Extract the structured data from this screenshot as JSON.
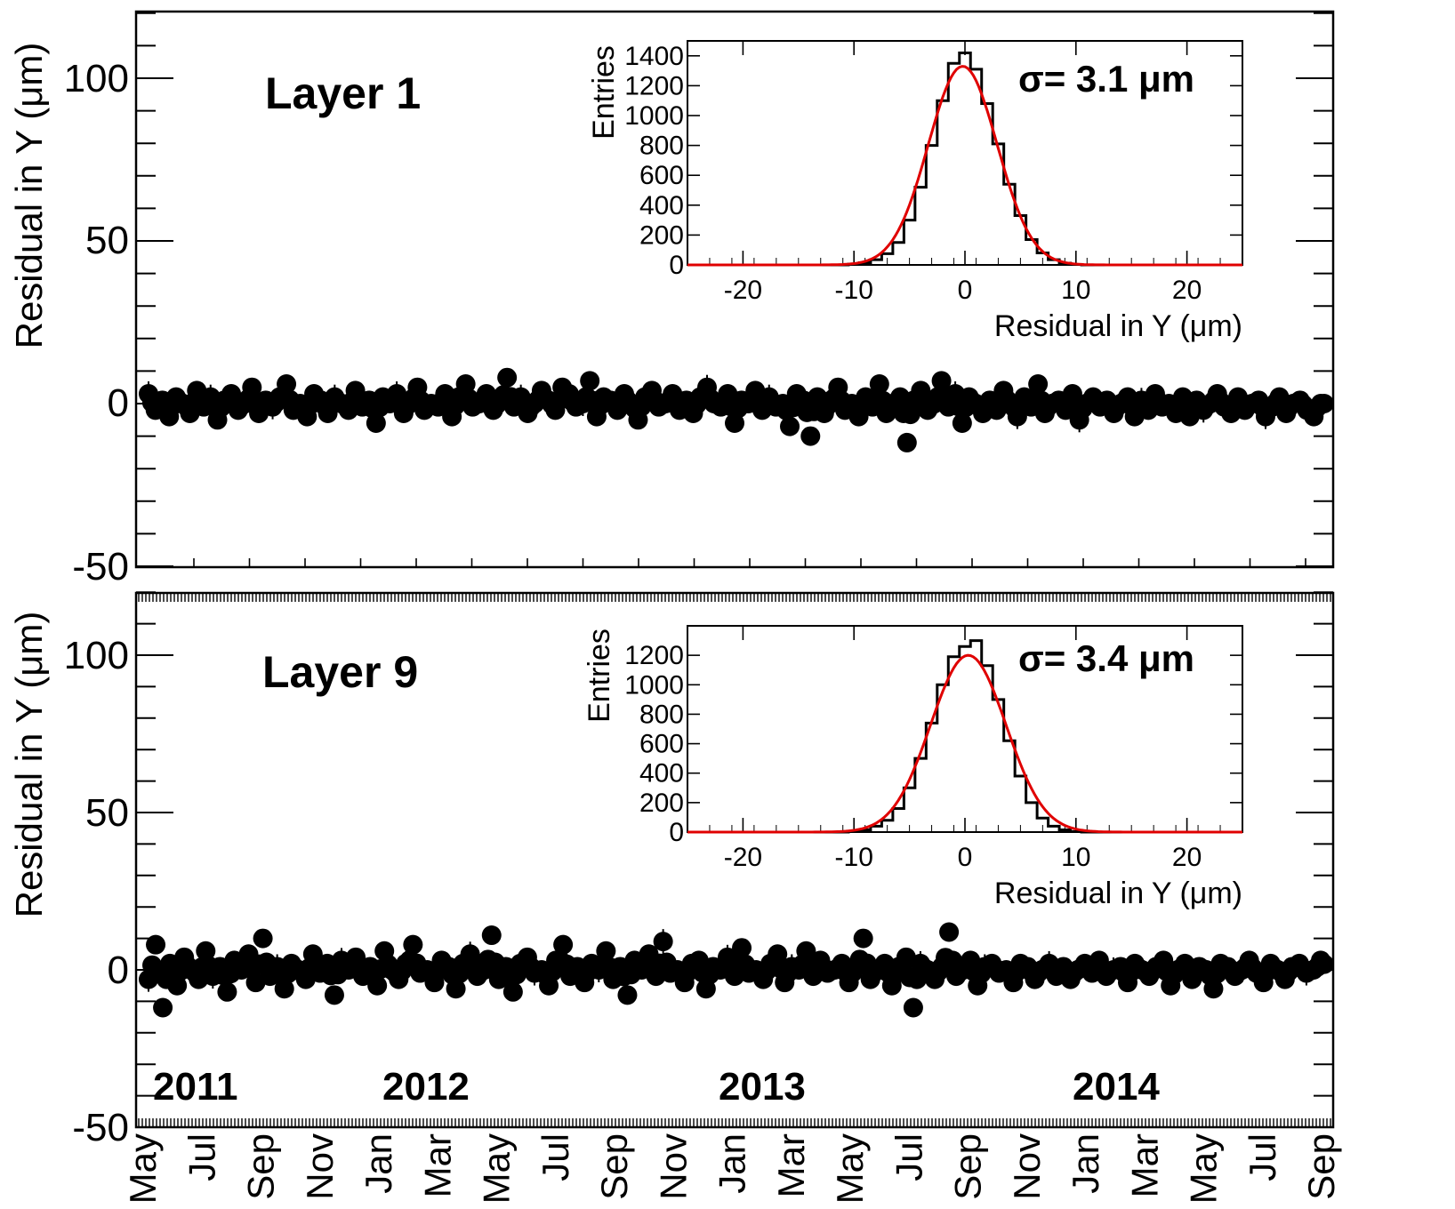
{
  "chart_data": [
    {
      "type": "scatter",
      "panel": "top",
      "title": "Layer 1",
      "ylabel": "Residual in Y (μm)",
      "ylim": [
        -50,
        120
      ],
      "yticks": [
        "100",
        "50",
        "0",
        "-50"
      ],
      "xrange": [
        "2011-05-01",
        "2014-09-30"
      ],
      "series": [
        {
          "type": "scatter",
          "description_values": "daily mean residuals scattered around ~0 um, mostly within -8..+10 um",
          "x_start": "2011-05-01",
          "x_end": "2014-09-30",
          "y": [
            3,
            -2,
            1,
            -4,
            2,
            0,
            -3,
            4,
            -1,
            2,
            -5,
            1,
            3,
            -2,
            0,
            5,
            -3,
            1,
            -1,
            2,
            6,
            -2,
            0,
            -4,
            3,
            1,
            -3,
            2,
            0,
            -2,
            4,
            -1,
            1,
            -6,
            2,
            0,
            3,
            -3,
            1,
            5,
            -2,
            0,
            -1,
            3,
            -4,
            2,
            6,
            -1,
            0,
            3,
            -2,
            1,
            8,
            -1,
            2,
            -3,
            0,
            4,
            1,
            -2,
            5,
            3,
            -1,
            0,
            7,
            -4,
            2,
            1,
            -2,
            3,
            0,
            -5,
            2,
            4,
            -1,
            0,
            3,
            -2,
            1,
            -3,
            2,
            5,
            0,
            -1,
            3,
            -6,
            1,
            0,
            4,
            -2,
            2,
            -1,
            0,
            -7,
            3,
            1,
            -10,
            2,
            -3,
            1,
            5,
            -2,
            0,
            -4,
            2,
            -1,
            6,
            -3,
            0,
            2,
            -12,
            1,
            4,
            -2,
            0,
            7,
            -1,
            3,
            -6,
            2,
            0,
            -3,
            1,
            -2,
            4,
            0,
            -4,
            2,
            -1,
            6,
            -3,
            0,
            1,
            -2,
            3,
            -5,
            0,
            2,
            -1,
            1,
            -3,
            0,
            2,
            -4,
            1,
            -2,
            3,
            -1,
            0,
            -3,
            2,
            -4,
            1,
            -2,
            0,
            3,
            -1,
            -3,
            2,
            -2,
            0,
            1,
            -4,
            -1,
            2,
            -3,
            0,
            1,
            -2,
            -4,
            0
          ]
        }
      ],
      "inset": {
        "type": "bar",
        "xlabel": "Residual in Y (μm)",
        "ylabel": "Entries",
        "xlim": [
          -25,
          25
        ],
        "ylim": [
          0,
          1500
        ],
        "xticks": [
          "-20",
          "-10",
          "0",
          "10",
          "20"
        ],
        "yticks": [
          "0",
          "200",
          "400",
          "600",
          "800",
          "1000",
          "1200",
          "1400"
        ],
        "sigma_label": "σ= 3.1 μm",
        "sigma": 3.1,
        "peak": 1330,
        "mean": -0.2,
        "bins_x": [
          -11,
          -10,
          -9,
          -8,
          -7,
          -6,
          -5,
          -4,
          -3,
          -2,
          -1,
          0,
          1,
          2,
          3,
          4,
          5,
          6,
          7,
          8,
          9,
          10
        ],
        "bins_y": [
          0,
          5,
          15,
          35,
          75,
          150,
          300,
          520,
          800,
          1100,
          1350,
          1420,
          1310,
          1080,
          810,
          540,
          330,
          170,
          80,
          35,
          12,
          3
        ],
        "fit_color": "#e00000"
      }
    },
    {
      "type": "scatter",
      "panel": "bottom",
      "title": "Layer 9",
      "ylabel": "Residual in Y (μm)",
      "ylim": [
        -50,
        120
      ],
      "yticks": [
        "100",
        "50",
        "0",
        "-50"
      ],
      "xrange": [
        "2011-05-01",
        "2014-09-30"
      ],
      "series": [
        {
          "type": "scatter",
          "description_values": "daily mean residuals scattered around ~0 um, mostly within -10..+12 um",
          "x_start": "2011-05-01",
          "x_end": "2014-09-30",
          "y": [
            -3,
            8,
            -12,
            2,
            -5,
            4,
            0,
            -3,
            6,
            -2,
            1,
            -7,
            3,
            0,
            5,
            -4,
            10,
            -2,
            1,
            -6,
            2,
            0,
            -3,
            5,
            -1,
            2,
            -8,
            3,
            0,
            4,
            -2,
            1,
            -5,
            6,
            0,
            -3,
            2,
            8,
            -1,
            0,
            -4,
            3,
            1,
            -6,
            2,
            5,
            -2,
            0,
            11,
            -3,
            1,
            -7,
            2,
            4,
            -1,
            0,
            -5,
            3,
            8,
            -2,
            1,
            -4,
            2,
            0,
            6,
            -3,
            1,
            -8,
            3,
            0,
            5,
            -2,
            9,
            -1,
            0,
            -4,
            2,
            3,
            -6,
            1,
            0,
            4,
            -2,
            7,
            -1,
            0,
            -3,
            2,
            5,
            -4,
            1,
            0,
            6,
            -2,
            3,
            -1,
            0,
            2,
            -4,
            1,
            10,
            -3,
            0,
            2,
            -5,
            1,
            4,
            -12,
            2,
            0,
            -3,
            1,
            12,
            -2,
            0,
            3,
            -5,
            1,
            2,
            -1,
            0,
            -4,
            2,
            1,
            -3,
            0,
            2,
            -2,
            1,
            -3,
            0,
            2,
            -1,
            3,
            -2,
            0,
            1,
            -4,
            2,
            0,
            -2,
            1,
            3,
            -5,
            0,
            2,
            -3,
            1,
            0,
            -6,
            2,
            1,
            -2,
            0,
            3,
            -1,
            -4,
            2,
            0,
            -3,
            1,
            2,
            -1,
            0,
            3
          ]
        }
      ],
      "inset": {
        "type": "bar",
        "xlabel": "Residual in Y (μm)",
        "ylabel": "Entries",
        "xlim": [
          -25,
          25
        ],
        "ylim": [
          0,
          1400
        ],
        "xticks": [
          "-20",
          "-10",
          "0",
          "10",
          "20"
        ],
        "yticks": [
          "0",
          "200",
          "400",
          "600",
          "800",
          "1000",
          "1200"
        ],
        "sigma_label": "σ= 3.4  μm",
        "sigma": 3.4,
        "peak": 1200,
        "mean": 0.3,
        "bins_x": [
          -11,
          -10,
          -9,
          -8,
          -7,
          -6,
          -5,
          -4,
          -3,
          -2,
          -1,
          0,
          1,
          2,
          3,
          4,
          5,
          6,
          7,
          8,
          9,
          10
        ],
        "bins_y": [
          0,
          5,
          15,
          40,
          80,
          160,
          300,
          500,
          740,
          1000,
          1190,
          1260,
          1300,
          1130,
          900,
          620,
          380,
          200,
          95,
          40,
          15,
          4
        ],
        "fit_color": "#e00000"
      }
    }
  ],
  "x_axis": {
    "months": [
      "May",
      "Jul",
      "Sep",
      "Nov",
      "Jan",
      "Mar",
      "May",
      "Jul",
      "Sep",
      "Nov",
      "Jan",
      "Mar",
      "May",
      "Jul",
      "Sep",
      "Nov",
      "Jan",
      "Mar",
      "May",
      "Jul",
      "Sep"
    ],
    "years": [
      "2011",
      "2012",
      "2013",
      "2014"
    ]
  },
  "colors": {
    "points": "#000000",
    "fit": "#e00000",
    "axes": "#000000"
  }
}
